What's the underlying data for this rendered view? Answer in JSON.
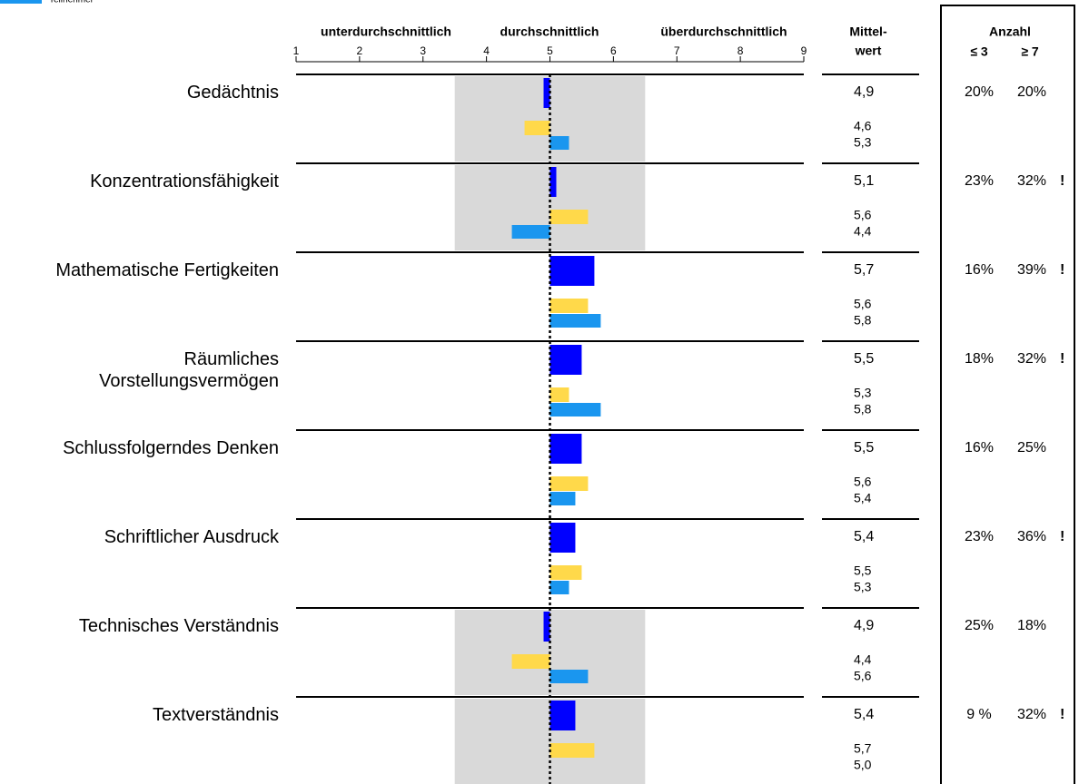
{
  "chart_data": {
    "type": "bar",
    "orientation": "horizontal",
    "categories": [
      "Gedächtnis",
      "Konzentrationsfähigkeit",
      "Mathematische Fertigkeiten",
      "Räumliches Vorstellungsvermögen",
      "Schlussfolgerndes Denken",
      "Schriftlicher Ausdruck",
      "Technisches Verständnis",
      "Textverständnis"
    ],
    "series": [
      {
        "color": "#0000ff",
        "values": [
          4.9,
          5.1,
          5.7,
          5.5,
          5.5,
          5.4,
          4.9,
          5.4
        ],
        "value_labels": [
          "4,9",
          "5,1",
          "5,7",
          "5,5",
          "5,5",
          "5,4",
          "4,9",
          "5,4"
        ]
      },
      {
        "color": "#ffd94a",
        "values": [
          4.6,
          5.6,
          5.6,
          5.3,
          5.6,
          5.5,
          4.4,
          5.7
        ],
        "value_labels": [
          "4,6",
          "5,6",
          "5,6",
          "5,3",
          "5,6",
          "5,5",
          "4,4",
          "5,7"
        ]
      },
      {
        "name": "Teilnehmer",
        "color": "#1a96ef",
        "values": [
          5.3,
          4.4,
          5.8,
          5.8,
          5.4,
          5.3,
          5.6,
          5.0
        ],
        "value_labels": [
          "5,3",
          "4,4",
          "5,8",
          "5,8",
          "5,4",
          "5,3",
          "5,6",
          "5,0"
        ]
      }
    ],
    "xlim": [
      1,
      9
    ],
    "xticks": [
      1,
      2,
      3,
      4,
      5,
      6,
      7,
      8,
      9
    ],
    "reference": 5,
    "band": [
      3.5,
      6.5
    ],
    "shaded": [
      true,
      true,
      false,
      false,
      false,
      false,
      true,
      true
    ],
    "range_labels": [
      "unterdurchschnittlich",
      "durchschnittlich",
      "überdurchschnittlich"
    ],
    "mean_header": [
      "Mittel-",
      "wert"
    ],
    "count_header": "Anzahl",
    "count_columns": [
      "≤ 3",
      "≥ 7"
    ],
    "count_low": [
      "20%",
      "23%",
      "16%",
      "18%",
      "16%",
      "23%",
      "25%",
      "9 %"
    ],
    "count_high": [
      "20%",
      "32%",
      "39%",
      "32%",
      "25%",
      "36%",
      "18%",
      "32%"
    ],
    "flags": [
      null,
      "!",
      "!",
      "!",
      null,
      "!",
      null,
      "!"
    ]
  }
}
